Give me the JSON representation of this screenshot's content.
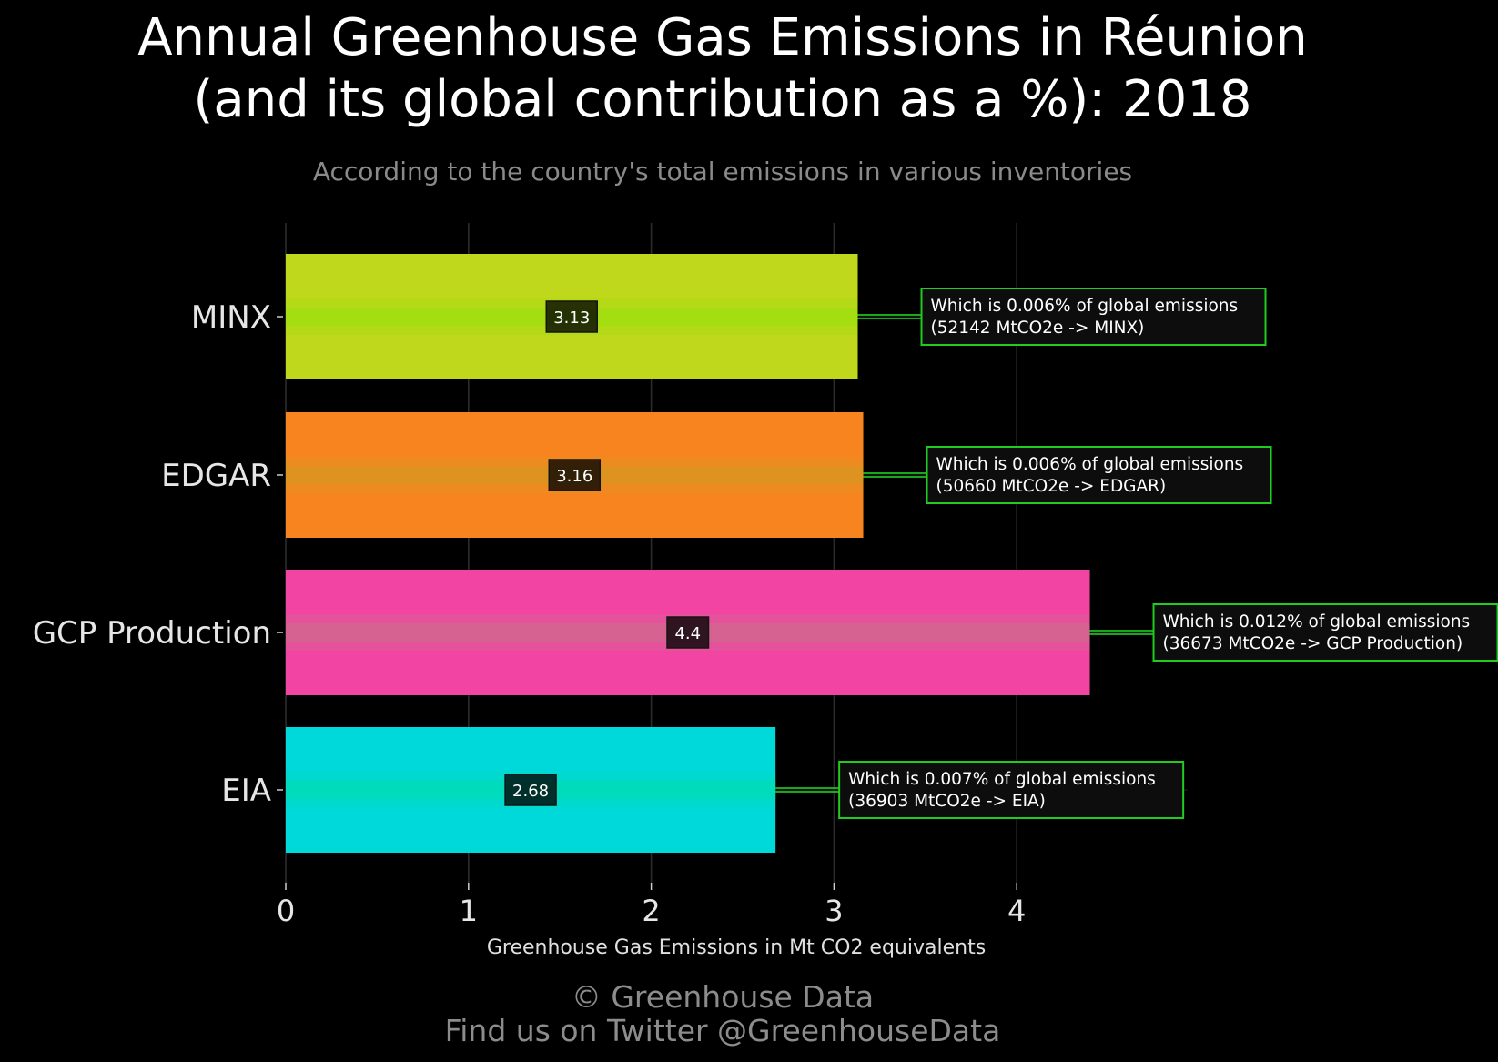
{
  "title_line1": "Annual Greenhouse Gas Emissions in Réunion",
  "title_line2": "(and its global contribution as a %): 2018",
  "subtitle": "According to the country's total emissions in various inventories",
  "caption_line1": "© Greenhouse Data",
  "caption_line2": "Find us on Twitter @GreenhouseData",
  "colors": {
    "background": "#000000",
    "annotation_border": "#1fcc1f",
    "annotation_bg": "#0d0d0d",
    "connector": "#22dd22"
  },
  "chart_data": {
    "type": "bar",
    "orientation": "horizontal",
    "xlabel": "Greenhouse Gas Emissions in Mt CO2 equivalents",
    "xlim": [
      0,
      4.95
    ],
    "xticks": [
      0,
      1,
      2,
      3,
      4
    ],
    "grid": true,
    "categories": [
      "MINX",
      "EDGAR",
      "GCP Production",
      "EIA"
    ],
    "values": [
      3.13,
      3.16,
      4.4,
      2.68
    ],
    "value_labels": [
      "3.13",
      "3.16",
      "4.4",
      "2.68"
    ],
    "bar_colors": [
      "#bfd81b",
      "#f7841f",
      "#f245a3",
      "#00d9d9"
    ],
    "stripe_colors": [
      "#a0df10",
      "#d99421",
      "#d2678f",
      "#00dbb6"
    ],
    "annotations": [
      {
        "line1": "Which is 0.006% of global emissions",
        "line2": "(52142 MtCO2e -> MINX)"
      },
      {
        "line1": "Which is 0.006% of global emissions",
        "line2": "(50660 MtCO2e -> EDGAR)"
      },
      {
        "line1": "Which is 0.012% of global emissions",
        "line2": "(36673 MtCO2e -> GCP Production)"
      },
      {
        "line1": "Which is 0.007% of global emissions",
        "line2": "(36903 MtCO2e -> EIA)"
      }
    ]
  }
}
